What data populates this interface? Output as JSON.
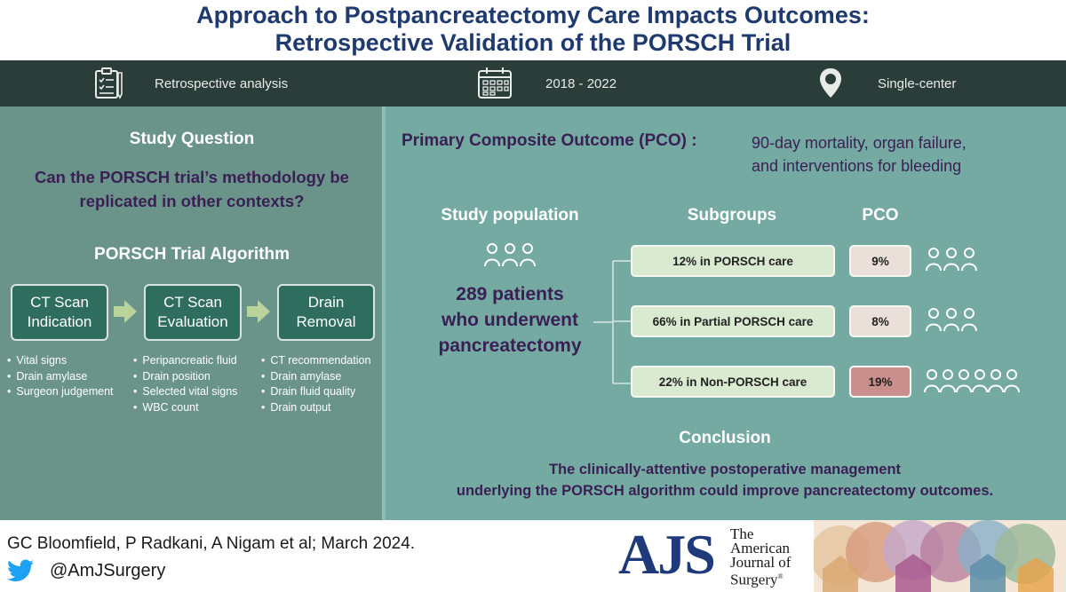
{
  "title": {
    "line1": "Approach to Postpancreatectomy Care Impacts Outcomes:",
    "line2": "Retrospective Validation of the PORSCH Trial"
  },
  "banner": {
    "item1": "Retrospective analysis",
    "item2": "2018 - 2022",
    "item3": "Single-center",
    "icons": [
      "clipboard-checklist-icon",
      "calendar-icon",
      "location-pin-icon"
    ]
  },
  "left": {
    "study_question_heading": "Study Question",
    "study_question_line1": "Can the PORSCH trial’s methodology be",
    "study_question_line2": "replicated in other contexts?",
    "algorithm_heading": "PORSCH Trial Algorithm",
    "steps": [
      {
        "line1": "CT Scan",
        "line2": "Indication",
        "bullets": [
          "Vital signs",
          "Drain amylase",
          "Surgeon judgement"
        ]
      },
      {
        "line1": "CT Scan",
        "line2": "Evaluation",
        "bullets": [
          "Peripancreatic fluid",
          "Drain position",
          "Selected vital signs",
          "WBC count"
        ]
      },
      {
        "line1": "Drain",
        "line2": "Removal",
        "bullets": [
          "CT recommendation",
          "Drain amylase",
          "Drain fluid quality",
          "Drain output"
        ]
      }
    ]
  },
  "right": {
    "pco_label": "Primary Composite Outcome (PCO) :",
    "pco_desc_line1": "90-day mortality, organ failure,",
    "pco_desc_line2": "and interventions for bleeding",
    "population_heading": "Study population",
    "population_line1": "289 patients",
    "population_line2": "who underwent",
    "population_line3": "pancreatectomy",
    "subgroups_heading": "Subgroups",
    "pco_heading": "PCO",
    "subgroups": [
      {
        "label": "12% in PORSCH care",
        "pco": "9%",
        "pco_color": "#eadfd9",
        "people": 3
      },
      {
        "label": "66% in Partial PORSCH care",
        "pco": "8%",
        "pco_color": "#eadfd9",
        "people": 3
      },
      {
        "label": "22% in Non-PORSCH care",
        "pco": "19%",
        "pco_color": "#c98f8c",
        "people": 6
      }
    ],
    "conclusion_heading": "Conclusion",
    "conclusion_line1": "The clinically-attentive postoperative management",
    "conclusion_line2": "underlying the PORSCH algorithm could improve pancreatectomy outcomes."
  },
  "footer": {
    "citation": "GC Bloomfield, P Radkani, A Nigam et al; March 2024.",
    "handle": "@AmJSurgery",
    "journal_abbrev": "AJS",
    "journal_line1": "The",
    "journal_line2": "American",
    "journal_line3": "Journal of",
    "journal_line4": "Surgery",
    "journal_reg": "®"
  },
  "colors": {
    "title": "#1f3a6e",
    "banner": "#2b3d38",
    "left_panel": "#6a948a",
    "right_panel": "#75aaa2",
    "box": "#2f6e5f",
    "purple_text": "#3a1f55"
  }
}
